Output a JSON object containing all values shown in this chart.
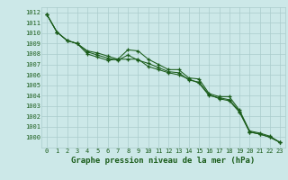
{
  "title": "Graphe pression niveau de la mer (hPa)",
  "x_hours": [
    0,
    1,
    2,
    3,
    4,
    5,
    6,
    7,
    8,
    9,
    10,
    11,
    12,
    13,
    14,
    15,
    16,
    17,
    18,
    19,
    20,
    21,
    22,
    23
  ],
  "line1": [
    1011.8,
    1010.1,
    1009.3,
    1009.0,
    1008.3,
    1008.1,
    1007.8,
    1007.5,
    1008.4,
    1008.3,
    1007.5,
    1007.0,
    1006.5,
    1006.5,
    1005.7,
    1005.6,
    1004.2,
    1003.9,
    1003.9,
    1002.6,
    1000.6,
    1000.4,
    1000.1,
    999.5
  ],
  "line2": [
    1011.8,
    1010.1,
    1009.3,
    1009.0,
    1008.0,
    1007.7,
    1007.4,
    1007.5,
    1007.5,
    1007.5,
    1006.8,
    1006.5,
    1006.2,
    1006.0,
    1005.6,
    1005.2,
    1004.0,
    1003.8,
    1003.6,
    1002.5,
    1000.5,
    1000.3,
    1000.0,
    999.5
  ],
  "line3": [
    1011.8,
    1010.1,
    1009.3,
    1009.0,
    1008.2,
    1007.9,
    1007.6,
    1007.4,
    1007.9,
    1007.4,
    1007.1,
    1006.7,
    1006.3,
    1006.2,
    1005.5,
    1005.3,
    1004.1,
    1003.7,
    1003.5,
    1002.4,
    1000.5,
    1000.3,
    1000.0,
    999.5
  ],
  "line_color": "#1a5c1a",
  "bg_color": "#cce8e8",
  "grid_color": "#aacccc",
  "ylim": [
    999.0,
    1012.5
  ],
  "yticks": [
    1000,
    1001,
    1002,
    1003,
    1004,
    1005,
    1006,
    1007,
    1008,
    1009,
    1010,
    1011,
    1012
  ],
  "title_fontsize": 6.5,
  "tick_fontsize": 5.0,
  "marker": "+"
}
